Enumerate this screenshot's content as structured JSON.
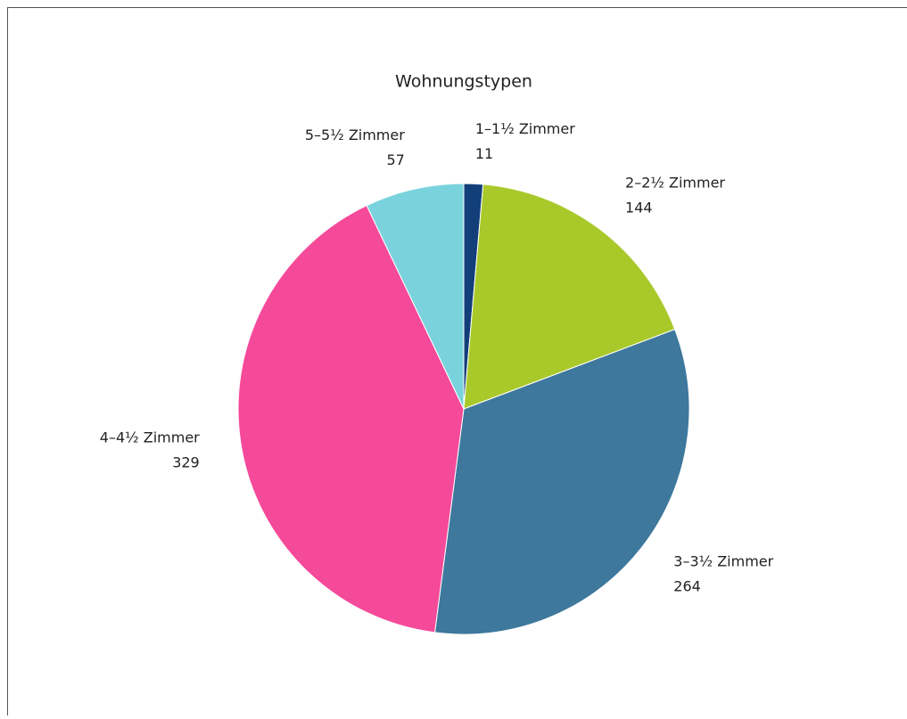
{
  "chart_data": {
    "type": "pie",
    "title": "Wohnungstypen",
    "categories": [
      "1–1½ Zimmer",
      "2–2½ Zimmer",
      "3–3½ Zimmer",
      "4–4½ Zimmer",
      "5–5½ Zimmer"
    ],
    "values": [
      11,
      144,
      264,
      329,
      57
    ],
    "colors": [
      "#123f7a",
      "#a9c92b",
      "#3e789c",
      "#f5499a",
      "#7ad3dc"
    ]
  }
}
